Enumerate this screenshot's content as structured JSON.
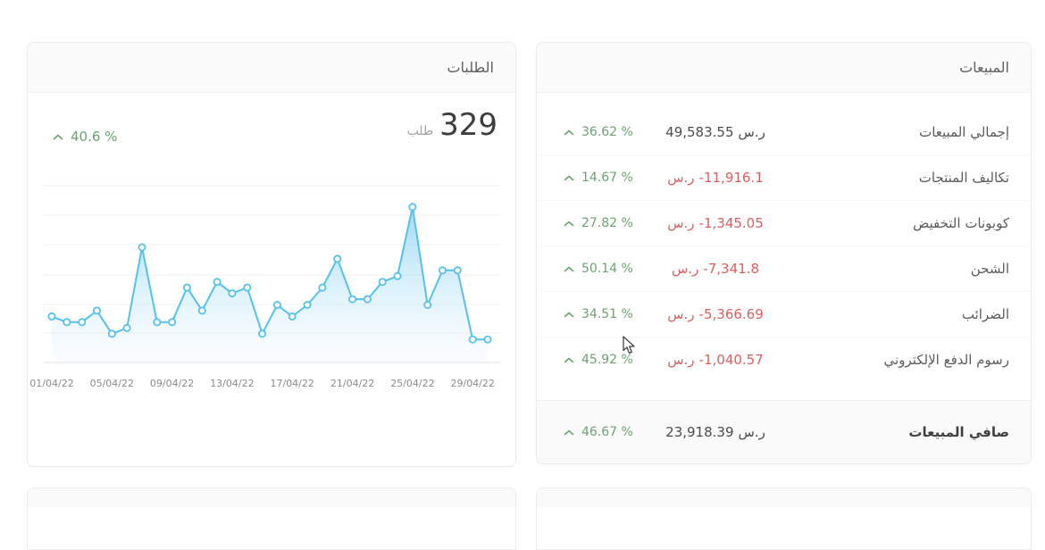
{
  "colors": {
    "positive_green": "#6da36f",
    "negative_red": "#e05e5e",
    "chart_blue": "#55c1ef",
    "text_dark": "#4c4c4c",
    "header_bg": "#fbfbfb"
  },
  "orders_card": {
    "title": "الطلبات",
    "total": "329",
    "unit": "طلب",
    "change": "40.6 %"
  },
  "sales_card": {
    "title": "المبيعات",
    "rows": [
      {
        "label": "إجمالي المبيعات",
        "amount": "49,583.55",
        "currency": "ر.س",
        "negative": false,
        "change": "36.62 %"
      },
      {
        "label": "تكاليف المنتجات",
        "amount": "-11,916.1",
        "currency": "ر.س",
        "negative": true,
        "change": "14.67 %"
      },
      {
        "label": "كوبونات التخفيض",
        "amount": "-1,345.05",
        "currency": "ر.س",
        "negative": true,
        "change": "27.82 %"
      },
      {
        "label": "الشحن",
        "amount": "-7,341.8",
        "currency": "ر.س",
        "negative": true,
        "change": "50.14 %"
      },
      {
        "label": "الضرائب",
        "amount": "-5,366.69",
        "currency": "ر.س",
        "negative": true,
        "change": "34.51 %"
      },
      {
        "label": "رسوم الدفع الإلكتروني",
        "amount": "-1,040.57",
        "currency": "ر.س",
        "negative": true,
        "change": "45.92 %"
      }
    ],
    "footer": {
      "label": "صافي المبيعات",
      "amount": "23,918.39",
      "currency": "ر.س",
      "change": "46.67 %"
    }
  },
  "chart_data": {
    "type": "area",
    "title": "الطلبات",
    "x": [
      "01/04/22",
      "02/04/22",
      "03/04/22",
      "04/04/22",
      "05/04/22",
      "06/04/22",
      "07/04/22",
      "08/04/22",
      "09/04/22",
      "10/04/22",
      "11/04/22",
      "12/04/22",
      "13/04/22",
      "14/04/22",
      "15/04/22",
      "16/04/22",
      "17/04/22",
      "18/04/22",
      "19/04/22",
      "20/04/22",
      "21/04/22",
      "22/04/22",
      "23/04/22",
      "24/04/22",
      "25/04/22",
      "26/04/22",
      "27/04/22",
      "28/04/22",
      "29/04/22",
      "30/04/22"
    ],
    "values": [
      8,
      7,
      7,
      9,
      5,
      6,
      20,
      7,
      7,
      13,
      9,
      14,
      12,
      13,
      5,
      10,
      8,
      10,
      13,
      18,
      11,
      11,
      14,
      15,
      27,
      10,
      16,
      16,
      4,
      4
    ],
    "x_tick_labels": [
      "01/04/22",
      "05/04/22",
      "09/04/22",
      "13/04/22",
      "17/04/22",
      "21/04/22",
      "25/04/22",
      "29/04/22"
    ],
    "x_tick_every": 4,
    "ylim": [
      0,
      30
    ],
    "grid": true,
    "legend": "none",
    "total_orders": 329
  }
}
